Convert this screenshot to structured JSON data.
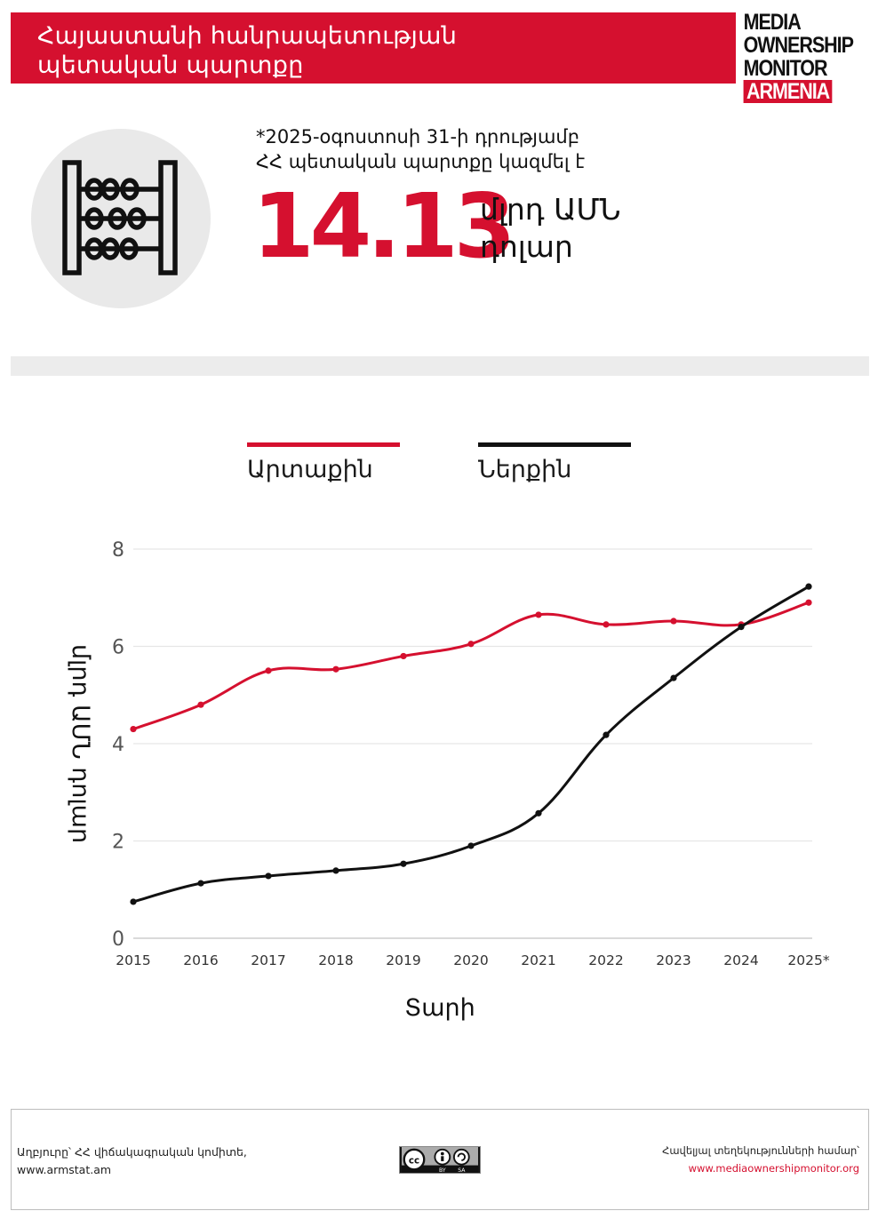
{
  "header": {
    "title_line1": "Հայաստանի հանրապետության",
    "title_line2": "պետական պարտքը"
  },
  "logo": {
    "line1": "MEDIA",
    "line2": "OWNERSHIP",
    "line3": "MONITOR",
    "line4": "ARMENIA"
  },
  "icon": {
    "name": "abacus-icon"
  },
  "headline": {
    "note_line1": "*2025-օգոստոսի 31-ի դրությամբ",
    "note_line2": "ՀՀ պետական պարտքը կազմել է",
    "value": "14.13",
    "unit_line1": "մլրդ ԱՄՆ",
    "unit_line2": "դոլար"
  },
  "colors": {
    "accent": "#d5102f",
    "domestic": "#111111",
    "band": "#ececec"
  },
  "chart_data": {
    "type": "line",
    "x": [
      "2015",
      "2016",
      "2017",
      "2018",
      "2019",
      "2020",
      "2021",
      "2022",
      "2023",
      "2024",
      "2025*"
    ],
    "series": [
      {
        "name": "Արտաքին",
        "color": "#d5102f",
        "values": [
          4.3,
          4.8,
          5.5,
          5.53,
          5.8,
          6.05,
          6.65,
          6.45,
          6.52,
          6.45,
          6.9
        ]
      },
      {
        "name": "Ներքին",
        "color": "#111111",
        "values": [
          0.75,
          1.13,
          1.28,
          1.39,
          1.53,
          1.9,
          2.57,
          4.18,
          5.35,
          6.4,
          7.23
        ]
      }
    ],
    "ylim": [
      0,
      8
    ],
    "yticks": [
      0,
      2,
      4,
      6,
      8
    ],
    "ylabel": "մլրդ ԱՄՆ դոլար",
    "xlabel": "Տարի",
    "grid": "horizontal",
    "legend": "top"
  },
  "footer": {
    "source_line1": "Աղբյուրը՝ ՀՀ վիճակագրական կոմիտե,",
    "source_line2": "www.armstat.am",
    "license": "CC BY SA",
    "more_line1": "Հավելյալ տեղեկությունների համար՝",
    "more_url": "www.mediaownershipmonitor.org"
  }
}
